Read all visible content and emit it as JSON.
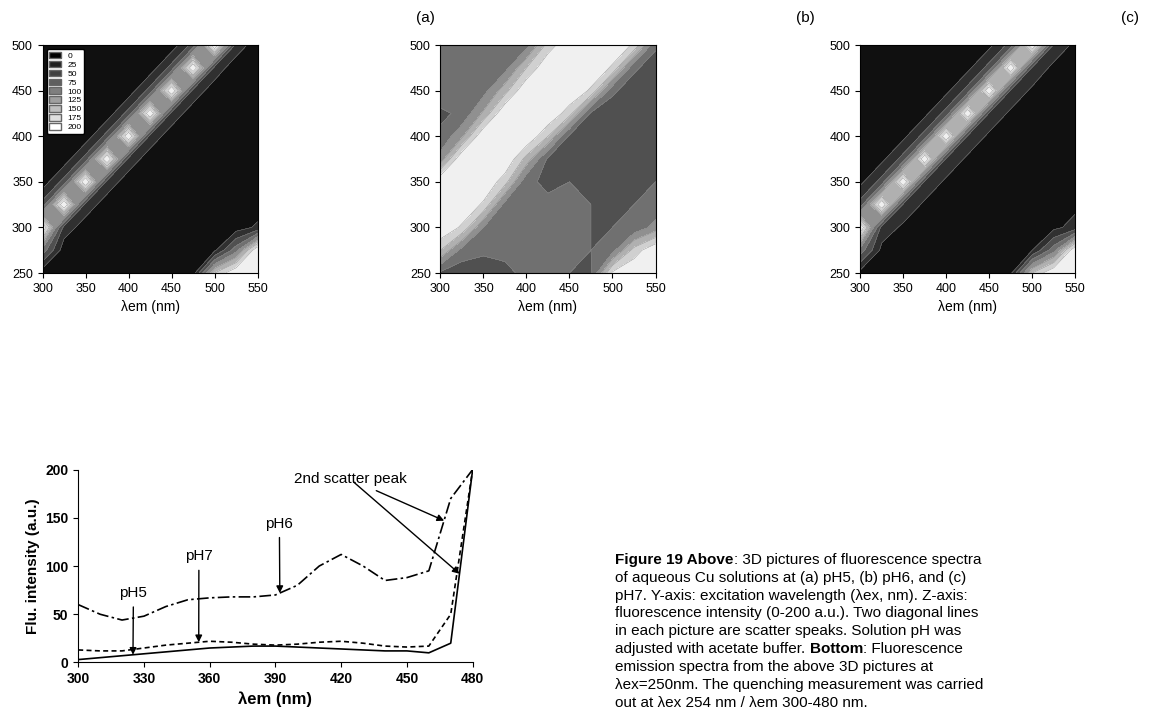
{
  "chart_data": [
    {
      "type": "contour",
      "title": "(a)",
      "x_label": "λem (nm)",
      "x": [
        300,
        325,
        350,
        375,
        400,
        425,
        450,
        475,
        500,
        525,
        550
      ],
      "y": [
        250,
        275,
        300,
        325,
        350,
        375,
        400,
        425,
        450,
        475,
        500
      ],
      "z": [
        [
          8,
          10,
          10,
          12,
          14,
          14,
          12,
          12,
          150,
          200,
          200
        ],
        [
          90,
          10,
          10,
          12,
          14,
          14,
          12,
          12,
          20,
          90,
          200
        ],
        [
          200,
          40,
          12,
          12,
          14,
          14,
          12,
          12,
          10,
          12,
          30
        ],
        [
          60,
          200,
          40,
          12,
          14,
          14,
          12,
          10,
          10,
          10,
          10
        ],
        [
          10,
          60,
          200,
          40,
          12,
          12,
          12,
          10,
          10,
          10,
          10
        ],
        [
          8,
          10,
          60,
          200,
          40,
          12,
          12,
          10,
          10,
          10,
          8
        ],
        [
          8,
          8,
          10,
          60,
          200,
          40,
          12,
          10,
          10,
          8,
          8
        ],
        [
          6,
          8,
          8,
          10,
          60,
          200,
          40,
          12,
          10,
          8,
          8
        ],
        [
          6,
          6,
          8,
          8,
          10,
          60,
          200,
          40,
          12,
          8,
          8
        ],
        [
          5,
          6,
          6,
          8,
          8,
          10,
          60,
          200,
          40,
          10,
          8
        ],
        [
          5,
          5,
          6,
          6,
          8,
          8,
          10,
          60,
          200,
          40,
          10
        ]
      ],
      "levels": [
        0,
        25,
        50,
        75,
        100,
        125,
        150,
        175,
        200
      ],
      "xlim": [
        300,
        550
      ],
      "ylim": [
        250,
        500
      ],
      "xticks": [
        300,
        350,
        400,
        450,
        500,
        550
      ],
      "yticks": [
        250,
        300,
        350,
        400,
        450,
        500
      ],
      "legend": "upper left"
    },
    {
      "type": "contour",
      "title": "(b)",
      "x_label": "λem (nm)",
      "x": [
        300,
        325,
        350,
        375,
        400,
        425,
        450,
        475,
        500,
        525,
        550
      ],
      "y": [
        250,
        275,
        300,
        325,
        350,
        375,
        400,
        425,
        450,
        475,
        500
      ],
      "z": [
        [
          70,
          60,
          60,
          70,
          80,
          85,
          75,
          70,
          180,
          200,
          200
        ],
        [
          150,
          90,
          80,
          80,
          85,
          85,
          80,
          75,
          90,
          160,
          200
        ],
        [
          200,
          170,
          100,
          85,
          80,
          80,
          80,
          75,
          75,
          80,
          110
        ],
        [
          200,
          200,
          170,
          90,
          85,
          80,
          80,
          75,
          75,
          75,
          80
        ],
        [
          200,
          200,
          200,
          160,
          80,
          70,
          75,
          75,
          75,
          75,
          75
        ],
        [
          110,
          200,
          200,
          200,
          140,
          70,
          60,
          60,
          65,
          70,
          70
        ],
        [
          80,
          120,
          200,
          200,
          200,
          150,
          70,
          60,
          60,
          65,
          65
        ],
        [
          70,
          80,
          130,
          200,
          200,
          200,
          160,
          70,
          60,
          60,
          60
        ],
        [
          90,
          80,
          90,
          140,
          200,
          200,
          200,
          170,
          80,
          60,
          60
        ],
        [
          100,
          90,
          80,
          90,
          150,
          200,
          200,
          200,
          170,
          80,
          60
        ],
        [
          90,
          90,
          80,
          80,
          90,
          160,
          200,
          200,
          200,
          170,
          80
        ]
      ],
      "levels": [
        0,
        25,
        50,
        75,
        100,
        125,
        150,
        175,
        200
      ],
      "xlim": [
        300,
        550
      ],
      "ylim": [
        250,
        500
      ],
      "xticks": [
        300,
        350,
        400,
        450,
        500,
        550
      ],
      "yticks": [
        250,
        300,
        350,
        400,
        450,
        500
      ]
    },
    {
      "type": "contour",
      "title": "(c)",
      "x_label": "λem (nm)",
      "x": [
        300,
        325,
        350,
        375,
        400,
        425,
        450,
        475,
        500,
        525,
        550
      ],
      "y": [
        250,
        275,
        300,
        325,
        350,
        375,
        400,
        425,
        450,
        475,
        500
      ],
      "z": [
        [
          15,
          15,
          18,
          20,
          20,
          20,
          18,
          18,
          150,
          200,
          200
        ],
        [
          90,
          18,
          18,
          20,
          20,
          20,
          20,
          18,
          25,
          90,
          200
        ],
        [
          200,
          40,
          20,
          20,
          22,
          22,
          20,
          18,
          18,
          18,
          35
        ],
        [
          60,
          200,
          45,
          20,
          22,
          22,
          20,
          18,
          18,
          18,
          18
        ],
        [
          18,
          60,
          200,
          45,
          20,
          20,
          20,
          18,
          18,
          18,
          18
        ],
        [
          15,
          18,
          60,
          200,
          45,
          20,
          20,
          18,
          18,
          18,
          15
        ],
        [
          15,
          15,
          18,
          60,
          200,
          45,
          20,
          18,
          18,
          15,
          15
        ],
        [
          12,
          15,
          15,
          18,
          60,
          200,
          45,
          20,
          18,
          15,
          15
        ],
        [
          12,
          12,
          15,
          15,
          18,
          60,
          200,
          45,
          20,
          15,
          15
        ],
        [
          10,
          12,
          12,
          15,
          15,
          18,
          60,
          200,
          45,
          18,
          15
        ],
        [
          10,
          10,
          12,
          12,
          15,
          15,
          18,
          60,
          200,
          45,
          18
        ]
      ],
      "levels": [
        0,
        25,
        50,
        75,
        100,
        125,
        150,
        175,
        200
      ],
      "xlim": [
        300,
        550
      ],
      "ylim": [
        250,
        500
      ],
      "xticks": [
        300,
        350,
        400,
        450,
        500,
        550
      ],
      "yticks": [
        250,
        300,
        350,
        400,
        450,
        500
      ]
    },
    {
      "type": "line",
      "x_label": "λem (nm)",
      "y_label": "Flu. intensity (a.u.)",
      "x": [
        300,
        310,
        320,
        330,
        340,
        350,
        360,
        370,
        380,
        390,
        400,
        410,
        420,
        430,
        440,
        450,
        460,
        470,
        480
      ],
      "series": [
        {
          "color": "#000000",
          "line_style": "solid",
          "values": [
            3,
            5,
            7,
            9,
            11,
            13,
            15,
            16,
            17,
            17,
            16,
            15,
            14,
            13,
            12,
            12,
            10,
            20,
            200
          ]
        },
        {
          "color": "#000000",
          "line_style": "dashed",
          "values": [
            13,
            12,
            12,
            15,
            18,
            20,
            22,
            21,
            19,
            18,
            19,
            21,
            22,
            20,
            17,
            16,
            17,
            50,
            200
          ]
        },
        {
          "color": "#000000",
          "line_style": "dashdot",
          "values": [
            60,
            50,
            44,
            48,
            58,
            65,
            67,
            68,
            68,
            70,
            80,
            100,
            112,
            100,
            85,
            88,
            95,
            170,
            200
          ]
        }
      ],
      "annotations": [
        {
          "text": "pH5",
          "points": [
            [
              325,
              8
            ]
          ]
        },
        {
          "text": "pH7",
          "points": [
            [
              355,
              21
            ]
          ]
        },
        {
          "text": "pH6",
          "points": [
            [
              392,
              72
            ]
          ]
        },
        {
          "text": "2nd scatter peak",
          "points": [
            [
              467,
              147
            ],
            [
              474,
              92
            ]
          ]
        }
      ],
      "xlim": [
        300,
        480
      ],
      "ylim": [
        0,
        200
      ],
      "xticks": [
        300,
        330,
        360,
        390,
        420,
        450,
        480
      ],
      "yticks": [
        0,
        50,
        100,
        150,
        200
      ]
    }
  ],
  "caption": {
    "lines": [
      "Figure 19 Above: 3D pictures of fluorescence spectra",
      "of aqueous Cu solutions at (a) pH5, (b) pH6, and (c)",
      "pH7. Y-axis: excitation wavelength (λex, nm). Z-axis:",
      "fluorescence intensity (0-200 a.u.). Two diagonal lines",
      "in each picture are scatter speaks. Solution pH was",
      "adjusted with acetate buffer. Bottom: Fluorescence",
      "emission spectra from the above 3D pictures at",
      "λex=250nm. The quenching measurement was carried",
      "out at λex 254 nm / λem 300-480 nm."
    ],
    "bold": [
      "Figure 19 Above",
      "Bottom"
    ]
  }
}
